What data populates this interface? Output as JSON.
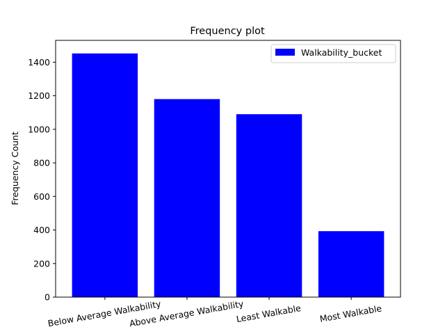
{
  "chart_data": {
    "type": "bar",
    "title": "Frequency plot",
    "xlabel": "",
    "ylabel": "Frequency Count",
    "categories": [
      "Below Average Walkability",
      "Above Average Walkability",
      "Least Walkable",
      "Most Walkable"
    ],
    "series": [
      {
        "name": "Walkability_bucket",
        "values": [
          1452,
          1180,
          1090,
          393
        ],
        "color": "#0000ff"
      }
    ],
    "ylim": [
      0,
      1530
    ],
    "yticks": [
      0,
      200,
      400,
      600,
      800,
      1000,
      1200,
      1400
    ],
    "grid": false,
    "legend_position": "top-right",
    "xtick_rotation_deg": -10
  }
}
